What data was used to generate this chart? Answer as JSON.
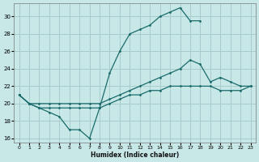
{
  "xlabel": "Humidex (Indice chaleur)",
  "background_color": "#c8e8e8",
  "grid_color": "#a8cccc",
  "line_color": "#1a6b6b",
  "xlim": [
    -0.5,
    23.5
  ],
  "ylim": [
    15.5,
    31.5
  ],
  "xticks": [
    0,
    1,
    2,
    3,
    4,
    5,
    6,
    7,
    8,
    9,
    10,
    11,
    12,
    13,
    14,
    15,
    16,
    17,
    18,
    19,
    20,
    21,
    22,
    23
  ],
  "yticks": [
    16,
    18,
    20,
    22,
    24,
    26,
    28,
    30
  ],
  "line1_x": [
    0,
    1,
    2,
    3,
    4,
    5,
    6,
    7,
    8,
    9,
    10,
    11,
    12,
    13,
    14,
    15,
    16,
    17,
    18
  ],
  "line1_y": [
    21,
    20,
    19.5,
    19,
    18.5,
    17,
    17,
    16,
    19.5,
    23.5,
    26,
    28,
    28.5,
    29,
    30,
    30.5,
    31,
    29.5,
    29.5
  ],
  "line2_x": [
    0,
    1,
    2,
    3,
    4,
    5,
    6,
    7,
    8,
    9,
    10,
    11,
    12,
    13,
    14,
    15,
    16,
    17,
    18,
    19,
    20,
    21,
    22,
    23
  ],
  "line2_y": [
    21,
    20,
    20,
    20,
    20,
    20,
    20,
    20,
    20,
    20.5,
    21,
    21.5,
    22,
    22.5,
    23,
    23.5,
    24,
    25,
    24.5,
    22.5,
    23,
    22.5,
    22,
    22
  ],
  "line3_x": [
    0,
    1,
    2,
    3,
    4,
    5,
    6,
    7,
    8,
    9,
    10,
    11,
    12,
    13,
    14,
    15,
    16,
    17,
    18,
    19,
    20,
    21,
    22,
    23
  ],
  "line3_y": [
    21,
    20,
    19.5,
    19.5,
    19.5,
    19.5,
    19.5,
    19.5,
    19.5,
    20,
    20.5,
    21,
    21,
    21.5,
    21.5,
    22,
    22,
    22,
    22,
    22,
    21.5,
    21.5,
    21.5,
    22
  ]
}
